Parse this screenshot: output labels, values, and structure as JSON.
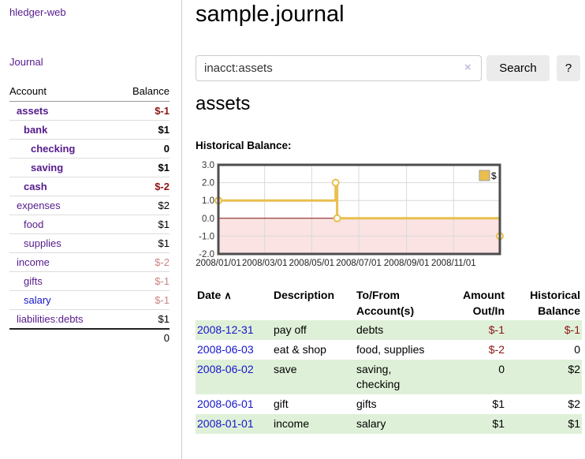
{
  "colors": {
    "link_purple": "#551a8b",
    "link_blue": "#1414cc",
    "negative_strong": "#8b1414",
    "negative_muted": "#c98585",
    "row_stripe_green": "#dff0d8",
    "chart_gold": "#e9bf4d",
    "chart_negative_region": "#fbe3e3",
    "chart_zero_line": "#7f1010",
    "chart_border": "#4d4d4d"
  },
  "sidebar": {
    "brand": "hledger-web",
    "nav": {
      "journal": "Journal"
    },
    "accounts_table": {
      "col_account": "Account",
      "col_balance": "Balance",
      "rows": [
        {
          "account": "assets",
          "depth": 1,
          "bold": true,
          "account_tone": "purple",
          "balance": "$-1",
          "balance_tone": "negative"
        },
        {
          "account": "bank",
          "depth": 2,
          "bold": true,
          "account_tone": "purple",
          "balance": "$1",
          "balance_tone": "normal"
        },
        {
          "account": "checking",
          "depth": 3,
          "bold": true,
          "account_tone": "purple",
          "balance": "0",
          "balance_tone": "normal"
        },
        {
          "account": "saving",
          "depth": 3,
          "bold": true,
          "account_tone": "purple",
          "balance": "$1",
          "balance_tone": "normal"
        },
        {
          "account": "cash",
          "depth": 2,
          "bold": true,
          "account_tone": "purple",
          "balance": "$-2",
          "balance_tone": "negative"
        },
        {
          "account": "expenses",
          "depth": 1,
          "bold": false,
          "account_tone": "purple",
          "balance": "$2",
          "balance_tone": "normal"
        },
        {
          "account": "food",
          "depth": 2,
          "bold": false,
          "account_tone": "purple",
          "balance": "$1",
          "balance_tone": "normal"
        },
        {
          "account": "supplies",
          "depth": 2,
          "bold": false,
          "account_tone": "purple",
          "balance": "$1",
          "balance_tone": "normal"
        },
        {
          "account": "income",
          "depth": 1,
          "bold": false,
          "account_tone": "purple",
          "balance": "$-2",
          "balance_tone": "negative-muted"
        },
        {
          "account": "gifts",
          "depth": 2,
          "bold": false,
          "account_tone": "purple",
          "balance": "$-1",
          "balance_tone": "negative-muted"
        },
        {
          "account": "salary",
          "depth": 2,
          "bold": false,
          "account_tone": "blue",
          "balance": "$-1",
          "balance_tone": "negative-muted"
        },
        {
          "account": "liabilities:debts",
          "depth": 1,
          "bold": false,
          "account_tone": "purple",
          "balance": "$1",
          "balance_tone": "normal"
        }
      ],
      "total": "0"
    }
  },
  "main": {
    "title": "sample.journal",
    "search": {
      "value": "inacct:assets",
      "clear_icon": "×",
      "search_button": "Search",
      "help_button": "?"
    },
    "account_heading": "assets",
    "chart_title": "Historical Balance:"
  },
  "chart_data": {
    "type": "line",
    "step": true,
    "title": "Historical Balance:",
    "legend": "$",
    "legend_position": "top-right",
    "grid": true,
    "ylim": [
      -2,
      3
    ],
    "y_ticks": [
      3,
      2,
      1,
      0,
      -1,
      -2
    ],
    "y_tick_labels": [
      "3.0",
      "2.0",
      "1.0",
      "0.0",
      "-1.0",
      "-2.0"
    ],
    "x_range": [
      "2008-01-01",
      "2008-12-31"
    ],
    "x_ticks": [
      {
        "label": "2008/01/01",
        "date": "2008-01-01"
      },
      {
        "label": "2008/03/01",
        "date": "2008-03-01"
      },
      {
        "label": "2008/05/01",
        "date": "2008-05-01"
      },
      {
        "label": "2008/07/01",
        "date": "2008-07-01"
      },
      {
        "label": "2008/09/01",
        "date": "2008-09-01"
      },
      {
        "label": "2008/11/01",
        "date": "2008-11-01"
      }
    ],
    "series": [
      {
        "name": "$",
        "color": "#e9bf4d",
        "points": [
          {
            "date": "2008-01-01",
            "value": 1
          },
          {
            "date": "2008-06-01",
            "value": 2
          },
          {
            "date": "2008-06-03",
            "value": 0
          },
          {
            "date": "2008-12-31",
            "value": -1
          }
        ]
      }
    ],
    "negative_fill": "#fbe3e3",
    "zero_line_color": "#7f1010",
    "grid_color": "#d9d9d9",
    "border_color": "#4d4d4d"
  },
  "register": {
    "sort_icon": "∧",
    "columns": [
      {
        "label": "Date",
        "sorted": "ascending"
      },
      {
        "label": "Description"
      },
      {
        "label": "To/From Account(s)"
      },
      {
        "label": "Amount Out/In",
        "align": "right"
      },
      {
        "label": "Historical Balance",
        "align": "right"
      }
    ],
    "rows": [
      {
        "date": "2008-12-31",
        "description": "pay off",
        "accounts": "debts",
        "amount": "$-1",
        "amount_tone": "negative",
        "balance": "$-1",
        "balance_tone": "negative"
      },
      {
        "date": "2008-06-03",
        "description": "eat & shop",
        "accounts": "food, supplies",
        "amount": "$-2",
        "amount_tone": "negative",
        "balance": "0",
        "balance_tone": "normal"
      },
      {
        "date": "2008-06-02",
        "description": "save",
        "accounts": "saving, checking",
        "amount": "0",
        "amount_tone": "normal",
        "balance": "$2",
        "balance_tone": "normal"
      },
      {
        "date": "2008-06-01",
        "description": "gift",
        "accounts": "gifts",
        "amount": "$1",
        "amount_tone": "normal",
        "balance": "$2",
        "balance_tone": "normal"
      },
      {
        "date": "2008-01-01",
        "description": "income",
        "accounts": "salary",
        "amount": "$1",
        "amount_tone": "normal",
        "balance": "$1",
        "balance_tone": "normal"
      }
    ]
  }
}
